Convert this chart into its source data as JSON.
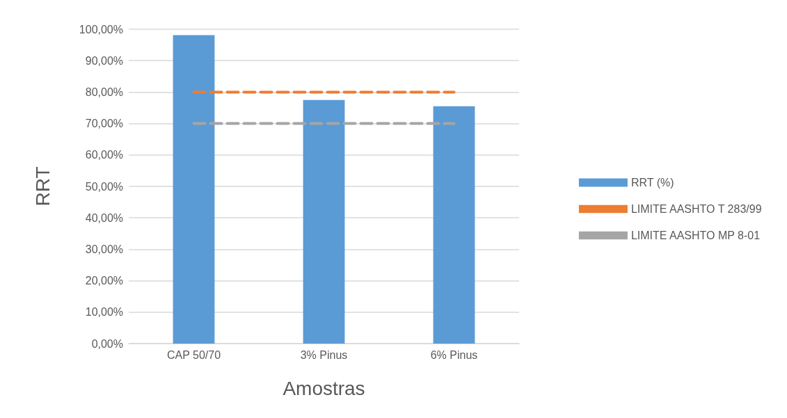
{
  "chart_data": {
    "type": "bar",
    "xlabel": "Amostras",
    "ylabel": "RRT",
    "categories": [
      "CAP 50/70",
      "3% Pinus",
      "6% Pinus"
    ],
    "series": [
      {
        "name": "RRT (%)",
        "color": "#5b9bd5",
        "values": [
          98.1,
          77.5,
          75.5
        ]
      },
      {
        "name": "LIMITE AASHTO T 283/99",
        "type": "line",
        "color": "#ed7d31",
        "line_style": "dashed",
        "marker": "none",
        "values": [
          80,
          80,
          80
        ]
      },
      {
        "name": "LIMITE AASHTO MP 8-01",
        "type": "line",
        "color": "#a5a5a5",
        "line_style": "dashed",
        "marker": "none",
        "values": [
          70,
          70,
          70
        ]
      }
    ],
    "ylim": [
      0,
      100
    ],
    "yticks": [
      {
        "value": 0,
        "label": "0,00%"
      },
      {
        "value": 10,
        "label": "10,00%"
      },
      {
        "value": 20,
        "label": "20,00%"
      },
      {
        "value": 30,
        "label": "30,00%"
      },
      {
        "value": 40,
        "label": "40,00%"
      },
      {
        "value": 50,
        "label": "50,00%"
      },
      {
        "value": 60,
        "label": "60,00%"
      },
      {
        "value": 70,
        "label": "70,00%"
      },
      {
        "value": 80,
        "label": "80,00%"
      },
      {
        "value": 90,
        "label": "90,00%"
      },
      {
        "value": 100,
        "label": "100,00%"
      }
    ],
    "grid": "y",
    "legend": "right"
  }
}
